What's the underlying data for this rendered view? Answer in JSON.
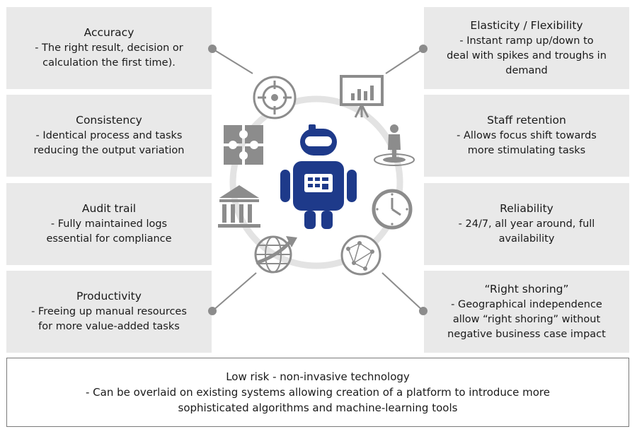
{
  "left_boxes": [
    {
      "title": "Accuracy",
      "body": "- The right result, decision or\ncalculation the first time)."
    },
    {
      "title": "Consistency",
      "body": "- Identical  process and tasks\nreducing the output variation"
    },
    {
      "title": "Audit trail",
      "body": "- Fully maintained  logs\nessential for compliance"
    },
    {
      "title": "Productivity",
      "body": "- Freeing up manual resources\nfor more value-added tasks"
    }
  ],
  "right_boxes": [
    {
      "title": "Elasticity / Flexibility",
      "body": "- Instant  ramp up/down to\ndeal with spikes and troughs in\ndemand"
    },
    {
      "title": "Staff retention",
      "body": "- Allows focus shift towards\nmore stimulating tasks"
    },
    {
      "title": "Reliability",
      "body": "- 24/7,  all year around, full\navailability"
    },
    {
      "title": "“Right shoring”",
      "body": "- Geographical independence\nallow “right shoring” without\nnegative  business case impact"
    }
  ],
  "bottom": {
    "title": "Low risk - non-invasive technology",
    "body": "- Can be overlaid on existing systems allowing creation of a platform to introduce more\nsophisticated algorithms and machine-learning tools"
  },
  "colors": {
    "box_bg": "#e9e9e9",
    "robot_blue": "#1e3a8a",
    "icon_gray": "#8c8c8c",
    "ring_gray": "#e0e0e0"
  }
}
